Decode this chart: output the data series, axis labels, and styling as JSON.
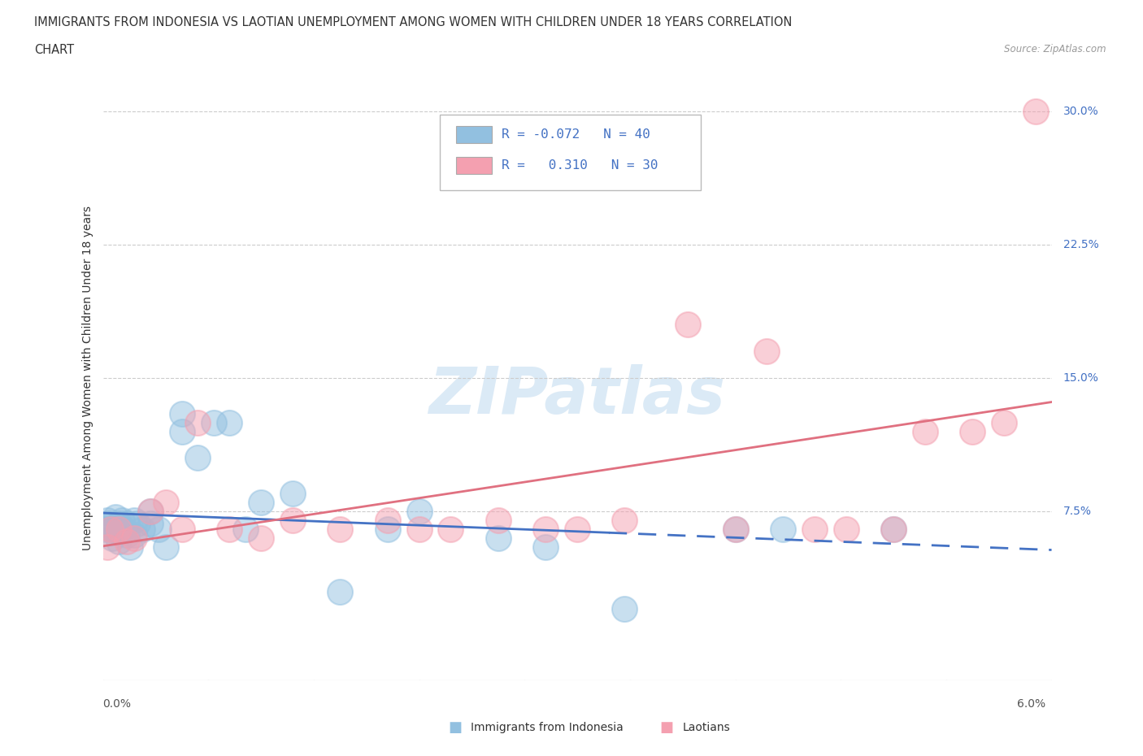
{
  "title_line1": "IMMIGRANTS FROM INDONESIA VS LAOTIAN UNEMPLOYMENT AMONG WOMEN WITH CHILDREN UNDER 18 YEARS CORRELATION",
  "title_line2": "CHART",
  "source_text": "Source: ZipAtlas.com",
  "ylabel": "Unemployment Among Women with Children Under 18 years",
  "ytick_values": [
    0.075,
    0.15,
    0.225,
    0.3
  ],
  "ytick_labels": [
    "7.5%",
    "15.0%",
    "22.5%",
    "30.0%"
  ],
  "xlim": [
    0.0,
    0.06
  ],
  "ylim": [
    -0.02,
    0.32
  ],
  "color_blue": "#92C0E0",
  "color_pink": "#F4A0B0",
  "color_blue_line": "#4472C4",
  "color_pink_line": "#E07080",
  "legend_text1": "R = -0.072   N = 40",
  "legend_text2": "R =   0.310   N = 30",
  "watermark": "ZIPatlas",
  "bottom_legend_left": "Immigrants from Indonesia",
  "bottom_legend_right": "Laotians",
  "indonesia_x": [
    0.0002,
    0.0003,
    0.0004,
    0.0005,
    0.0006,
    0.0007,
    0.0008,
    0.001,
    0.001,
    0.001,
    0.0012,
    0.0013,
    0.0015,
    0.0015,
    0.0017,
    0.002,
    0.002,
    0.0022,
    0.0025,
    0.003,
    0.003,
    0.0035,
    0.004,
    0.005,
    0.005,
    0.006,
    0.007,
    0.008,
    0.009,
    0.01,
    0.012,
    0.015,
    0.018,
    0.02,
    0.025,
    0.028,
    0.033,
    0.04,
    0.043,
    0.05
  ],
  "indonesia_y": [
    0.065,
    0.07,
    0.068,
    0.065,
    0.06,
    0.065,
    0.072,
    0.068,
    0.063,
    0.058,
    0.07,
    0.065,
    0.068,
    0.062,
    0.055,
    0.07,
    0.062,
    0.068,
    0.065,
    0.068,
    0.075,
    0.065,
    0.055,
    0.12,
    0.13,
    0.105,
    0.125,
    0.125,
    0.065,
    0.08,
    0.085,
    0.03,
    0.065,
    0.075,
    0.06,
    0.055,
    0.02,
    0.065,
    0.065,
    0.065
  ],
  "laotian_x": [
    0.0003,
    0.0005,
    0.001,
    0.0015,
    0.002,
    0.003,
    0.004,
    0.005,
    0.006,
    0.008,
    0.01,
    0.012,
    0.015,
    0.018,
    0.02,
    0.022,
    0.025,
    0.028,
    0.03,
    0.033,
    0.037,
    0.04,
    0.042,
    0.045,
    0.047,
    0.05,
    0.052,
    0.055,
    0.057,
    0.059
  ],
  "laotian_y": [
    0.055,
    0.065,
    0.065,
    0.058,
    0.06,
    0.075,
    0.08,
    0.065,
    0.125,
    0.065,
    0.06,
    0.07,
    0.065,
    0.07,
    0.065,
    0.065,
    0.07,
    0.065,
    0.065,
    0.07,
    0.18,
    0.065,
    0.165,
    0.065,
    0.065,
    0.065,
    0.12,
    0.12,
    0.125,
    0.3
  ]
}
